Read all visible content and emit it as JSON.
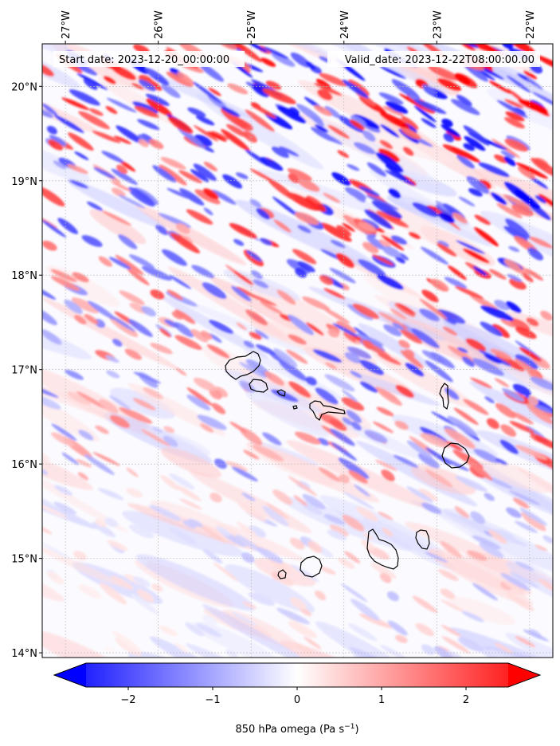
{
  "map": {
    "start_date_label": "Start date: 2023-12-20_00:00:00",
    "valid_date_label": "Valid_date: 2023-12-22T08:00:00.00",
    "lon_range": [
      -27.25,
      -21.75
    ],
    "lat_range": [
      13.95,
      20.45
    ],
    "lon_ticks": [
      {
        "value": -27,
        "label": "27°W"
      },
      {
        "value": -26,
        "label": "26°W"
      },
      {
        "value": -25,
        "label": "25°W"
      },
      {
        "value": -24,
        "label": "24°W"
      },
      {
        "value": -23,
        "label": "23°W"
      },
      {
        "value": -22,
        "label": "22°W"
      }
    ],
    "lat_ticks": [
      {
        "value": 20,
        "label": "20°N"
      },
      {
        "value": 19,
        "label": "19°N"
      },
      {
        "value": 18,
        "label": "18°N"
      },
      {
        "value": 17,
        "label": "17°N"
      },
      {
        "value": 16,
        "label": "16°N"
      },
      {
        "value": 15,
        "label": "15°N"
      },
      {
        "value": 14,
        "label": "14°N"
      }
    ],
    "gridlines": true,
    "field": "850 hPa omega",
    "field_pattern": "banded NW-SE oriented alternating ascent (blue) and descent (red) anomalies, strongest in the north-east, weak in the south-west",
    "islands": [
      {
        "name": "Santo Antão",
        "lon": -25.17,
        "lat": 17.05
      },
      {
        "name": "São Vicente",
        "lon": -24.97,
        "lat": 16.84
      },
      {
        "name": "Santa Luzia",
        "lon": -24.74,
        "lat": 16.76
      },
      {
        "name": "Raso",
        "lon": -24.58,
        "lat": 16.62
      },
      {
        "name": "São Nicolau",
        "lon": -24.27,
        "lat": 16.6
      },
      {
        "name": "Sal",
        "lon": -22.93,
        "lat": 16.72
      },
      {
        "name": "Boa Vista",
        "lon": -22.83,
        "lat": 16.08
      },
      {
        "name": "Maio",
        "lon": -23.16,
        "lat": 15.21
      },
      {
        "name": "Santiago",
        "lon": -23.63,
        "lat": 15.07
      },
      {
        "name": "Fogo",
        "lon": -24.37,
        "lat": 14.92
      },
      {
        "name": "Brava",
        "lon": -24.71,
        "lat": 14.85
      }
    ]
  },
  "colorbar": {
    "label_main": "850 hPa omega (Pa s",
    "label_sup": "−1",
    "label_end": ")",
    "vmin": -2.5,
    "vmax": 2.5,
    "extend": "both",
    "colormap": "bwr",
    "color_low": "#0000ff",
    "color_mid": "#ffffff",
    "color_high": "#ff0000",
    "ticks": [
      {
        "value": -2,
        "label": "−2"
      },
      {
        "value": -1,
        "label": "−1"
      },
      {
        "value": 0,
        "label": "0"
      },
      {
        "value": 1,
        "label": "1"
      },
      {
        "value": 2,
        "label": "2"
      }
    ]
  }
}
